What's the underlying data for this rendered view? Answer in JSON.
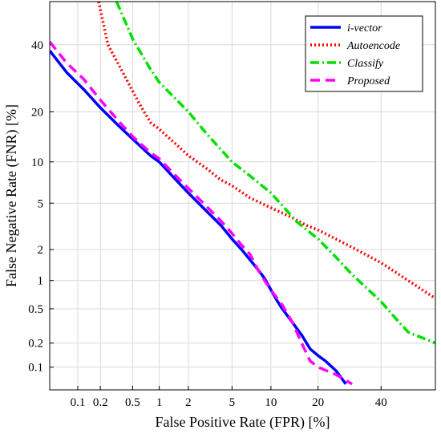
{
  "chart_data": {
    "type": "line",
    "title": "",
    "xlabel": "False Positive Rate (FPR) [%]",
    "ylabel": "False Negative Rate (FNR) [%]",
    "scale": "normal-deviate (DET)",
    "xlim": [
      0.04,
      60
    ],
    "ylim": [
      0.05,
      55
    ],
    "grid": true,
    "legend_position": "top-right",
    "x_ticks": [
      {
        "value": 0.1,
        "label": "0.1"
      },
      {
        "value": 0.2,
        "label": "0.2"
      },
      {
        "value": 0.5,
        "label": "0.5"
      },
      {
        "value": 1,
        "label": "1"
      },
      {
        "value": 2,
        "label": "2"
      },
      {
        "value": 5,
        "label": "5"
      },
      {
        "value": 10,
        "label": "10"
      },
      {
        "value": 20,
        "label": "20"
      },
      {
        "value": 40,
        "label": "40"
      }
    ],
    "y_ticks": [
      {
        "value": 0.1,
        "label": "0.1"
      },
      {
        "value": 0.2,
        "label": "0.2"
      },
      {
        "value": 0.5,
        "label": "0.5"
      },
      {
        "value": 1,
        "label": "1"
      },
      {
        "value": 2,
        "label": "2"
      },
      {
        "value": 5,
        "label": "5"
      },
      {
        "value": 10,
        "label": "10"
      },
      {
        "value": 20,
        "label": "20"
      },
      {
        "value": 40,
        "label": "40"
      }
    ],
    "series": [
      {
        "name": "i-vector",
        "color": "#0000ff",
        "dash": "solid",
        "points": [
          [
            0.04,
            38
          ],
          [
            0.07,
            31
          ],
          [
            0.12,
            26
          ],
          [
            0.2,
            21
          ],
          [
            0.35,
            16.5
          ],
          [
            0.5,
            14
          ],
          [
            0.8,
            11
          ],
          [
            1,
            10
          ],
          [
            1.5,
            7.5
          ],
          [
            2,
            6
          ],
          [
            3,
            4.3
          ],
          [
            4,
            3.3
          ],
          [
            5,
            2.5
          ],
          [
            6,
            2
          ],
          [
            7,
            1.6
          ],
          [
            8,
            1.3
          ],
          [
            9,
            1.05
          ],
          [
            10,
            0.8
          ],
          [
            11,
            0.62
          ],
          [
            12,
            0.5
          ],
          [
            14,
            0.35
          ],
          [
            16,
            0.25
          ],
          [
            18,
            0.17
          ],
          [
            20,
            0.14
          ],
          [
            22,
            0.12
          ],
          [
            25,
            0.09
          ],
          [
            28,
            0.06
          ]
        ]
      },
      {
        "name": "Autoencode",
        "color": "#ff0000",
        "dash": "dotted",
        "points": [
          [
            0.19,
            55
          ],
          [
            0.25,
            40
          ],
          [
            0.4,
            30
          ],
          [
            0.6,
            22
          ],
          [
            0.8,
            17.5
          ],
          [
            1,
            16
          ],
          [
            1.5,
            13
          ],
          [
            2,
            11
          ],
          [
            3,
            9
          ],
          [
            4,
            7.5
          ],
          [
            5,
            6.8
          ],
          [
            7,
            5.5
          ],
          [
            10,
            4.6
          ],
          [
            14,
            3.8
          ],
          [
            17,
            3.3
          ],
          [
            20,
            3
          ],
          [
            25,
            2.5
          ],
          [
            30,
            2.1
          ],
          [
            40,
            1.5
          ],
          [
            50,
            1.0
          ],
          [
            60,
            0.65
          ]
        ]
      },
      {
        "name": "Classify",
        "color": "#00e000",
        "dash": "dashdot",
        "points": [
          [
            0.32,
            55
          ],
          [
            0.5,
            42
          ],
          [
            0.8,
            32
          ],
          [
            1,
            28
          ],
          [
            2,
            20
          ],
          [
            3,
            15
          ],
          [
            5,
            10
          ],
          [
            7,
            8
          ],
          [
            10,
            6
          ],
          [
            15,
            3.5
          ],
          [
            20,
            2.5
          ],
          [
            25,
            1.7
          ],
          [
            30,
            1.15
          ],
          [
            40,
            0.6
          ],
          [
            45,
            0.4
          ],
          [
            50,
            0.27
          ],
          [
            60,
            0.2
          ]
        ]
      },
      {
        "name": "Proposed",
        "color": "#ff00ff",
        "dash": "dashed",
        "points": [
          [
            0.04,
            41
          ],
          [
            0.07,
            34
          ],
          [
            0.12,
            29
          ],
          [
            0.2,
            23
          ],
          [
            0.35,
            17.5
          ],
          [
            0.5,
            14.5
          ],
          [
            0.8,
            11.5
          ],
          [
            1,
            10.5
          ],
          [
            1.5,
            8
          ],
          [
            2,
            6.5
          ],
          [
            3,
            4.7
          ],
          [
            4,
            3.6
          ],
          [
            5,
            2.8
          ],
          [
            6,
            2.2
          ],
          [
            7,
            1.8
          ],
          [
            8,
            1.3
          ],
          [
            9,
            1.0
          ],
          [
            10,
            0.8
          ],
          [
            12,
            0.55
          ],
          [
            14,
            0.35
          ],
          [
            16,
            0.2
          ],
          [
            18,
            0.12
          ],
          [
            20,
            0.1
          ],
          [
            25,
            0.08
          ],
          [
            30,
            0.06
          ]
        ]
      }
    ]
  }
}
